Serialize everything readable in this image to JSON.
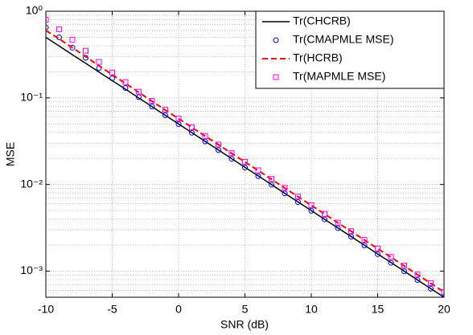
{
  "chart_data": {
    "type": "line",
    "xlabel": "SNR (dB)",
    "ylabel": "MSE",
    "x": [
      -10,
      -9,
      -8,
      -7,
      -6,
      -5,
      -4,
      -3,
      -2,
      -1,
      0,
      1,
      2,
      3,
      4,
      5,
      6,
      7,
      8,
      9,
      10,
      11,
      12,
      13,
      14,
      15,
      16,
      17,
      18,
      19,
      20
    ],
    "series": [
      {
        "name": "Tr(CHCRB)",
        "color": "#000000",
        "linestyle": "solid",
        "marker": "none",
        "values": [
          0.5,
          0.397,
          0.315,
          0.251,
          0.199,
          0.158,
          0.126,
          0.1,
          0.0792,
          0.0629,
          0.05,
          0.0397,
          0.0315,
          0.0251,
          0.0199,
          0.0158,
          0.0126,
          0.01,
          0.00792,
          0.00629,
          0.005,
          0.00397,
          0.00315,
          0.00251,
          0.00199,
          0.00158,
          0.00126,
          0.001,
          0.000792,
          0.000629,
          0.0005
        ]
      },
      {
        "name": "Tr(CMAPMLE MSE)",
        "color": "#0000ff",
        "linestyle": "none",
        "marker": "circle",
        "values": [
          0.65,
          0.5,
          0.38,
          0.29,
          0.22,
          0.168,
          0.13,
          0.102,
          0.0795,
          0.063,
          0.0498,
          0.0396,
          0.0314,
          0.025,
          0.0198,
          0.0157,
          0.0125,
          0.00995,
          0.0079,
          0.00627,
          0.00498,
          0.00396,
          0.00314,
          0.0025,
          0.00198,
          0.00157,
          0.00125,
          0.000995,
          0.00079,
          0.000627,
          0.000498
        ]
      },
      {
        "name": "Tr(HCRB)",
        "color": "#ff0000",
        "linestyle": "dashed",
        "marker": "none",
        "values": [
          0.6,
          0.48,
          0.38,
          0.3,
          0.235,
          0.185,
          0.147,
          0.116,
          0.0915,
          0.0725,
          0.0575,
          0.0457,
          0.0362,
          0.0289,
          0.0229,
          0.0182,
          0.0145,
          0.0115,
          0.00911,
          0.00723,
          0.00575,
          0.00457,
          0.00362,
          0.00289,
          0.00229,
          0.00182,
          0.00145,
          0.00115,
          0.000911,
          0.000723,
          0.000575
        ]
      },
      {
        "name": "Tr(MAPMLE MSE)",
        "color": "#ff00ff",
        "linestyle": "none",
        "marker": "square",
        "values": [
          0.8,
          0.62,
          0.47,
          0.35,
          0.26,
          0.196,
          0.152,
          0.118,
          0.0925,
          0.0728,
          0.0577,
          0.0458,
          0.0363,
          0.029,
          0.023,
          0.0183,
          0.0146,
          0.0116,
          0.00915,
          0.00726,
          0.00577,
          0.00458,
          0.00363,
          0.0029,
          0.0023,
          0.00183,
          0.00146,
          0.00116,
          0.000915,
          0.000726,
          0.000577
        ]
      }
    ],
    "xlim": [
      -10,
      20
    ],
    "xticks": [
      -10,
      -5,
      0,
      5,
      10,
      15,
      20
    ],
    "ylim": [
      0.0005,
      1
    ],
    "ylog": true,
    "yticks": [
      {
        "value": 0.001,
        "label": "10⁻³"
      },
      {
        "value": 0.01,
        "label": "10⁻²"
      },
      {
        "value": 0.1,
        "label": "10⁻¹"
      },
      {
        "value": 1,
        "label": "10⁰"
      }
    ],
    "grid": true,
    "minor_grid": true,
    "legend": "upper right"
  }
}
